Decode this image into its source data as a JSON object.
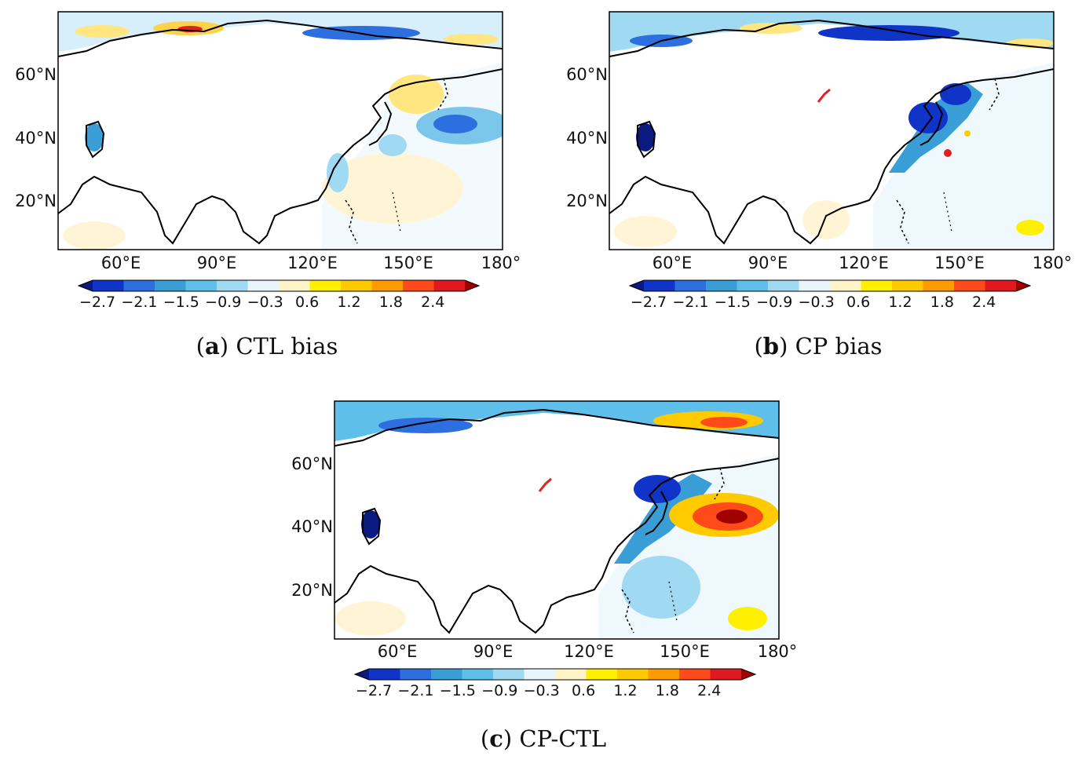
{
  "figure": {
    "colorbar": {
      "colors": [
        "#0a1a80",
        "#1033c8",
        "#2e6fe0",
        "#3a9ed6",
        "#5ec0ea",
        "#9fd9f2",
        "#e8f6fc",
        "#fff4c8",
        "#fff000",
        "#ffca00",
        "#ff9a00",
        "#ff4a1a",
        "#e01820",
        "#a00000"
      ],
      "tick_labels": [
        "−2.7",
        "−2.1",
        "−1.5",
        "−0.9",
        "−0.3",
        "0.6",
        "1.2",
        "1.8",
        "2.4"
      ],
      "tick_values": [
        -2.7,
        -2.1,
        -1.5,
        -0.9,
        -0.3,
        0.6,
        1.2,
        1.8,
        2.4
      ],
      "extend": "both"
    },
    "axes": {
      "x_tick_labels": [
        "60°E",
        "90°E",
        "120°E",
        "150°E",
        "180°"
      ],
      "y_tick_labels": [
        "60°N",
        "40°N",
        "20°N"
      ]
    },
    "panels": [
      {
        "id": "a",
        "letter": "a",
        "title": "CTL bias"
      },
      {
        "id": "b",
        "letter": "b",
        "title": "CP bias"
      },
      {
        "id": "c",
        "letter": "c",
        "title": "CP-CTL"
      }
    ]
  }
}
